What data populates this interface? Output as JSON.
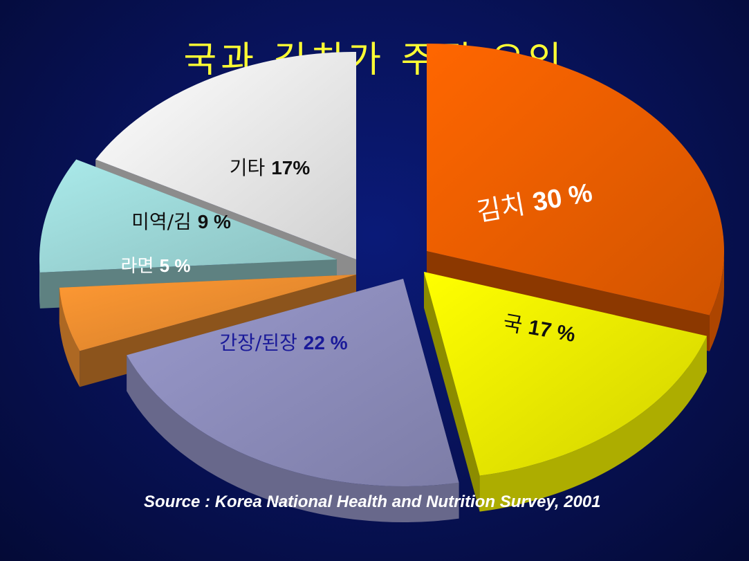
{
  "title": "국과 김치가 주된 요인",
  "source": "Source : Korea National Health and Nutrition Survey, 2001",
  "chart_data": {
    "type": "pie",
    "title": "국과 김치가 주된 요인",
    "slices": [
      {
        "name": "김치",
        "value": 30,
        "value_label": "30 %",
        "color": "#ff6600",
        "label_color": "#ffffff"
      },
      {
        "name": "국",
        "value": 17,
        "value_label": "17 %",
        "color": "#ffff00",
        "label_color": "#111111"
      },
      {
        "name": "간장/된장",
        "value": 22,
        "value_label": "22 %",
        "color": "#9999cc",
        "label_color": "#1a1a99"
      },
      {
        "name": "라면",
        "value": 5,
        "value_label": "5 %",
        "color": "#ff9933",
        "label_color": "#ffffff"
      },
      {
        "name": "미역/김",
        "value": 9,
        "value_label": "9 %",
        "color": "#aaeaea",
        "label_color": "#111111"
      },
      {
        "name": "기타",
        "value": 17,
        "value_label": "17%",
        "color": "#ffffff",
        "label_color": "#111111"
      }
    ],
    "exploded": true,
    "style": "3d"
  }
}
